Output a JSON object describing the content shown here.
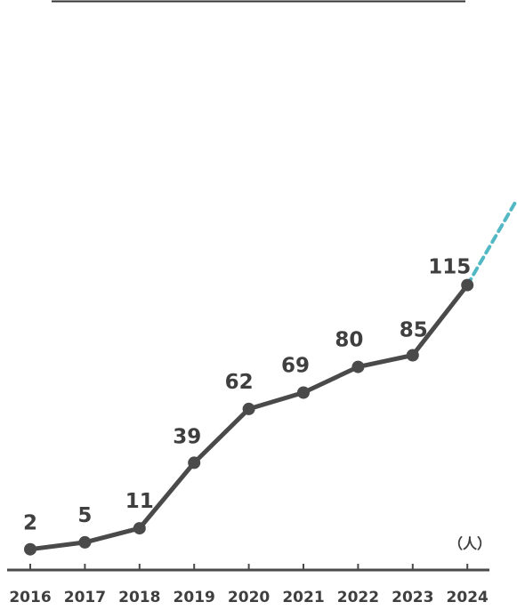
{
  "chart_data": {
    "type": "line",
    "title": "",
    "xlabel": "",
    "ylabel": "",
    "unit_label": "（人）",
    "categories": [
      "2016",
      "2017",
      "2018",
      "2019",
      "2020",
      "2021",
      "2022",
      "2023",
      "2024"
    ],
    "series": [
      {
        "values": [
          2,
          5,
          11,
          39,
          62,
          69,
          80,
          85,
          115
        ]
      }
    ],
    "trend_extension": {
      "style": "dashed",
      "direction": "upward continuation after 2024"
    },
    "legend": "none",
    "grid": false
  },
  "colors": {
    "line": "#4a4a4a",
    "point": "#4a4a4a",
    "text": "#3f3f3f",
    "axis": "#4a4a4a",
    "trend": "#52b8c4"
  }
}
